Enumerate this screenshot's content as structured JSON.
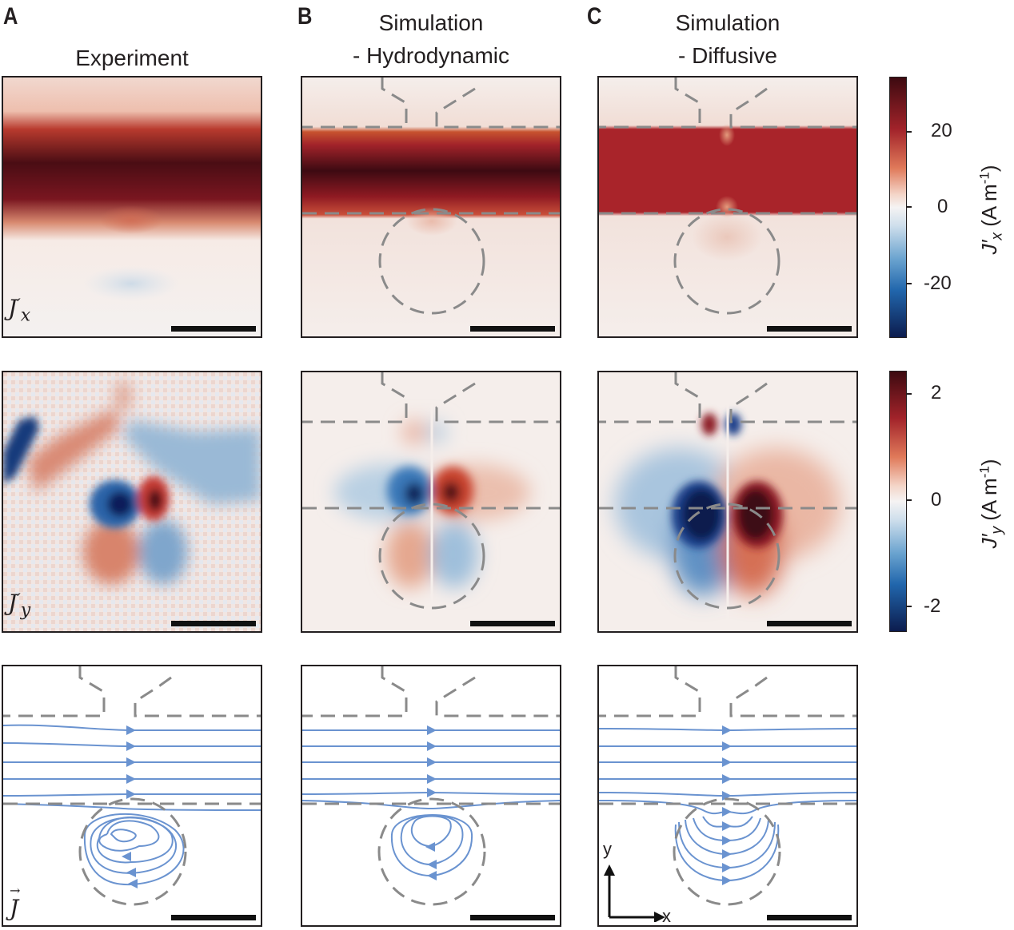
{
  "panels": {
    "A": {
      "letter": "A",
      "title": "Experiment"
    },
    "B": {
      "letter": "B",
      "title_line1": "Simulation",
      "title_line2": "- Hydrodynamic"
    },
    "C": {
      "letter": "C",
      "title_line1": "Simulation",
      "title_line2": "- Diffusive"
    }
  },
  "row_labels": {
    "jx": {
      "base": "J",
      "prime": "′",
      "sub": "x"
    },
    "jy": {
      "base": "J",
      "prime": "′",
      "sub": "y"
    },
    "j": {
      "base": "J",
      "arrow": "→"
    }
  },
  "colorbars": {
    "jx": {
      "title_base": "J′",
      "title_sub": "x",
      "title_unit": " (A m",
      "title_exp": "-1",
      "title_close": ")",
      "range": [
        -34,
        34
      ],
      "ticks": [
        {
          "value": 20,
          "label": "20"
        },
        {
          "value": 0,
          "label": "0"
        },
        {
          "value": -20,
          "label": "-20"
        }
      ]
    },
    "jy": {
      "title_base": "J′",
      "title_sub": "y",
      "title_unit": " (A m",
      "title_exp": "-1",
      "title_close": ")",
      "range": [
        -2.5,
        2.5
      ],
      "ticks": [
        {
          "value": 2,
          "label": "2"
        },
        {
          "value": 0,
          "label": "0"
        },
        {
          "value": -2,
          "label": "-2"
        }
      ]
    }
  },
  "axes_indicator": {
    "x": "x",
    "y": "y"
  },
  "colors": {
    "dark_red": "#3d0a10",
    "red": "#b22a2a",
    "white": "#f7f1f0",
    "blue": "#2166ac",
    "dark_blue": "#0c1c4e",
    "stream": "#6a93d0",
    "dash": "#8a8a8a"
  }
}
